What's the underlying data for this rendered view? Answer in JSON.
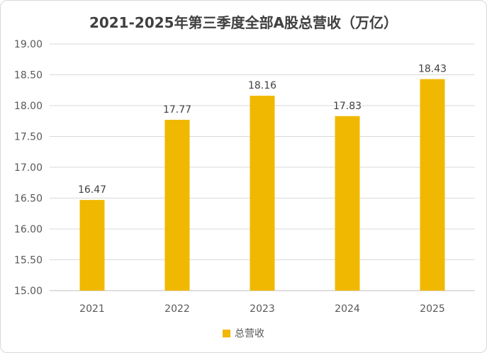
{
  "chart_data": {
    "type": "bar",
    "title": "2021-2025年第三季度全部A股总营收（万亿）",
    "categories": [
      "2021",
      "2022",
      "2023",
      "2024",
      "2025"
    ],
    "series": [
      {
        "name": "总营收",
        "values": [
          16.47,
          17.77,
          18.16,
          17.83,
          18.43
        ],
        "color": "#f0b800"
      }
    ],
    "data_labels": [
      "16.47",
      "17.77",
      "18.16",
      "17.83",
      "18.43"
    ],
    "y_ticks": [
      "15.00",
      "15.50",
      "16.00",
      "16.50",
      "17.00",
      "17.50",
      "18.00",
      "18.50",
      "19.00"
    ],
    "ylim": [
      15.0,
      19.0
    ],
    "xlabel": "",
    "ylabel": "",
    "grid": true,
    "legend_position": "bottom"
  }
}
